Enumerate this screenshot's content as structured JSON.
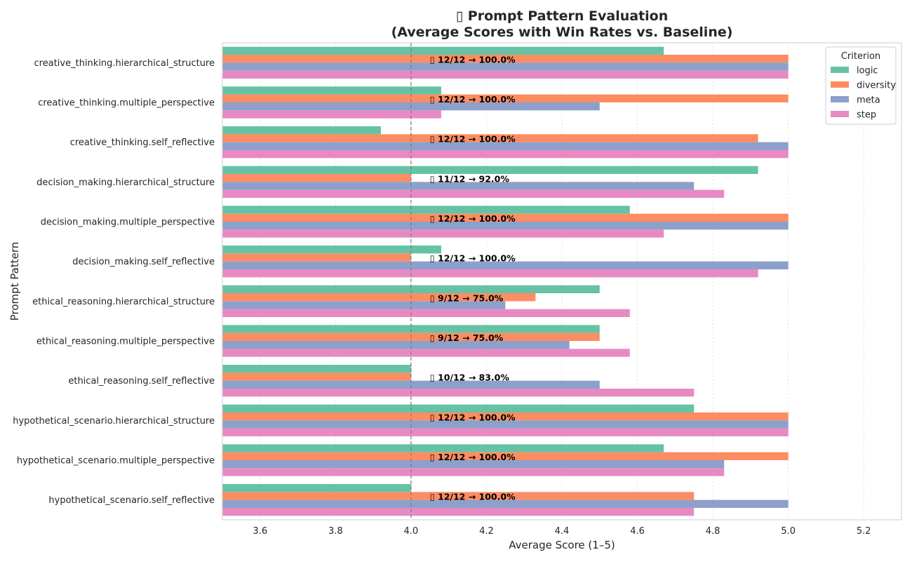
{
  "chart_data": {
    "type": "bar",
    "orientation": "horizontal",
    "title_line1": "▯ Prompt Pattern Evaluation",
    "title_line2": "(Average Scores with Win Rates vs. Baseline)",
    "xlabel": "Average Score (1–5)",
    "ylabel": "Prompt Pattern",
    "xlim": [
      3.5,
      5.3
    ],
    "xticks": [
      3.6,
      3.8,
      4.0,
      4.2,
      4.4,
      4.6,
      4.8,
      5.0,
      5.2
    ],
    "xtick_labels": [
      "3.6",
      "3.8",
      "4.0",
      "4.2",
      "4.4",
      "4.6",
      "4.8",
      "5.0",
      "5.2"
    ],
    "reference_line": 4.0,
    "grid": "vertical dotted",
    "legend": {
      "title": "Criterion",
      "placement": "top-right"
    },
    "categories": [
      "creative_thinking.hierarchical_structure",
      "creative_thinking.multiple_perspective",
      "creative_thinking.self_reflective",
      "decision_making.hierarchical_structure",
      "decision_making.multiple_perspective",
      "decision_making.self_reflective",
      "ethical_reasoning.hierarchical_structure",
      "ethical_reasoning.multiple_perspective",
      "ethical_reasoning.self_reflective",
      "hypothetical_scenario.hierarchical_structure",
      "hypothetical_scenario.multiple_perspective",
      "hypothetical_scenario.self_reflective"
    ],
    "series": [
      {
        "name": "logic",
        "color": "#66c2a5",
        "values": [
          4.67,
          4.08,
          3.92,
          4.92,
          4.58,
          4.08,
          4.5,
          4.5,
          4.0,
          4.75,
          4.67,
          4.0
        ]
      },
      {
        "name": "diversity",
        "color": "#fc8d62",
        "values": [
          5.0,
          5.0,
          4.92,
          4.0,
          5.0,
          4.0,
          4.33,
          4.5,
          4.0,
          5.0,
          5.0,
          4.75
        ]
      },
      {
        "name": "meta",
        "color": "#8da0cb",
        "values": [
          5.0,
          4.5,
          5.0,
          4.75,
          5.0,
          5.0,
          4.25,
          4.42,
          4.5,
          5.0,
          4.83,
          5.0
        ]
      },
      {
        "name": "step",
        "color": "#e78ac3",
        "values": [
          5.0,
          4.08,
          5.0,
          4.83,
          4.67,
          4.92,
          4.58,
          4.58,
          4.75,
          5.0,
          4.83,
          4.75
        ]
      }
    ],
    "annotations": [
      "▯ 12/12 → 100.0%",
      "▯ 12/12 → 100.0%",
      "▯ 12/12 → 100.0%",
      "▯ 11/12 → 92.0%",
      "▯ 12/12 → 100.0%",
      "▯ 12/12 → 100.0%",
      "▯ 9/12 → 75.0%",
      "▯ 9/12 → 75.0%",
      "▯ 10/12 → 83.0%",
      "▯ 12/12 → 100.0%",
      "▯ 12/12 → 100.0%",
      "▯ 12/12 → 100.0%"
    ],
    "annotation_x": 4.05
  }
}
